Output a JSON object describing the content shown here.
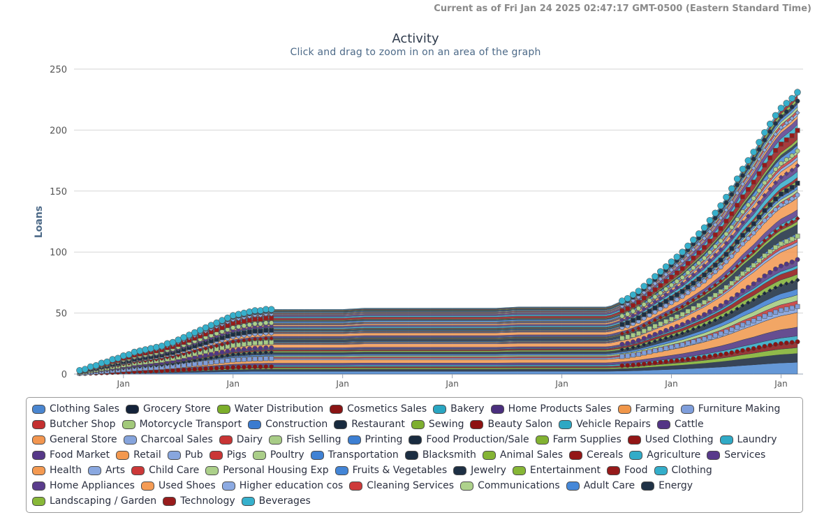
{
  "header": {
    "timestamp": "Current as of Fri Jan 24 2025 02:47:17 GMT-0500 (Eastern Standard Time)"
  },
  "chart_data": {
    "type": "area",
    "stacked": true,
    "title": "Activity",
    "subtitle": "Click and drag to zoom in on an area of the graph",
    "ylabel": "Loans",
    "xlabel": "",
    "ylim": [
      0,
      250
    ],
    "y_ticks": [
      0,
      50,
      100,
      150,
      200,
      250
    ],
    "x_tick_labels": [
      "Jan",
      "Jan",
      "Jan",
      "Jan",
      "Jan",
      "Jan",
      "Jan"
    ],
    "grid": true,
    "legend_position": "bottom",
    "x": [
      0,
      0.05,
      0.1,
      0.15,
      0.2,
      0.25,
      0.3,
      0.35,
      0.4,
      0.45,
      0.5,
      0.55,
      0.6,
      0.65,
      0.7,
      0.75,
      0.8,
      0.85,
      0.9,
      0.95,
      1.0,
      1.05,
      1.1,
      1.15,
      1.2,
      1.25,
      1.3,
      1.35,
      1.4,
      1.45,
      1.5,
      1.55,
      1.6,
      1.65,
      1.7,
      1.75,
      1.8,
      1.85,
      1.9,
      1.95,
      2.0,
      2.05,
      2.1,
      2.2,
      2.4,
      2.6,
      2.8,
      3.0,
      3.2,
      3.4,
      3.6,
      3.8,
      4.0,
      4.2,
      4.4,
      4.6,
      4.8,
      4.85,
      4.9,
      4.95,
      5.0,
      5.05,
      5.1,
      5.15,
      5.2,
      5.25,
      5.3,
      5.35,
      5.4,
      5.45,
      5.5,
      5.55,
      5.6,
      5.65,
      5.7,
      5.75,
      5.8,
      5.85,
      5.9,
      5.95,
      6.0,
      6.05,
      6.1,
      6.15,
      6.2,
      6.25,
      6.3,
      6.35,
      6.4,
      6.45,
      6.5,
      6.55
    ],
    "total": [
      3,
      4,
      6,
      7,
      9,
      10,
      12,
      13,
      15,
      16,
      18,
      19,
      20,
      21,
      22,
      23,
      25,
      26,
      28,
      30,
      32,
      34,
      36,
      38,
      40,
      42,
      44,
      46,
      48,
      49,
      50,
      51,
      52,
      52,
      53,
      53,
      53,
      53,
      53,
      53,
      53,
      53,
      53,
      53,
      53,
      54,
      54,
      54,
      54,
      54,
      54,
      54,
      55,
      55,
      55,
      55,
      55,
      56,
      58,
      60,
      62,
      65,
      68,
      72,
      76,
      80,
      84,
      88,
      92,
      96,
      100,
      105,
      110,
      115,
      120,
      126,
      132,
      138,
      145,
      152,
      160,
      168,
      175,
      182,
      190,
      198,
      205,
      212,
      218,
      222,
      226,
      231
    ],
    "series": [
      {
        "name": "Clothing Sales",
        "color": "#4a86d0",
        "weight": 4
      },
      {
        "name": "Grocery Store",
        "color": "#14233a",
        "weight": 3
      },
      {
        "name": "Water Distribution",
        "color": "#7cae2a",
        "weight": 2
      },
      {
        "name": "Cosmetics Sales",
        "color": "#8a1414",
        "weight": 2
      },
      {
        "name": "Bakery",
        "color": "#2aa6c2",
        "weight": 2
      },
      {
        "name": "Home Products Sales",
        "color": "#4b2f7e",
        "weight": 3
      },
      {
        "name": "Farming",
        "color": "#f0964a",
        "weight": 5
      },
      {
        "name": "Furniture Making",
        "color": "#7f9edb",
        "weight": 2
      },
      {
        "name": "Butcher Shop",
        "color": "#c43030",
        "weight": 2
      },
      {
        "name": "Motorcycle Transport",
        "color": "#a2c97a",
        "weight": 2
      },
      {
        "name": "Construction",
        "color": "#3a7bd0",
        "weight": 2
      },
      {
        "name": "Restaurant",
        "color": "#182a3e",
        "weight": 3
      },
      {
        "name": "Sewing",
        "color": "#7eaf30",
        "weight": 2
      },
      {
        "name": "Beauty Salon",
        "color": "#8e1212",
        "weight": 2
      },
      {
        "name": "Vehicle Repairs",
        "color": "#2ea8c4",
        "weight": 1
      },
      {
        "name": "Cattle",
        "color": "#533585",
        "weight": 2
      },
      {
        "name": "General Store",
        "color": "#f29650",
        "weight": 5
      },
      {
        "name": "Charcoal Sales",
        "color": "#86a4dc",
        "weight": 1
      },
      {
        "name": "Dairy",
        "color": "#c83434",
        "weight": 1
      },
      {
        "name": "Fish Selling",
        "color": "#a8cc86",
        "weight": 1
      },
      {
        "name": "Printing",
        "color": "#3d7fd2",
        "weight": 1
      },
      {
        "name": "Food Production/Sale",
        "color": "#1a2c40",
        "weight": 3
      },
      {
        "name": "Farm Supplies",
        "color": "#82b232",
        "weight": 1
      },
      {
        "name": "Used Clothing",
        "color": "#921616",
        "weight": 1
      },
      {
        "name": "Laundry",
        "color": "#30aac6",
        "weight": 1
      },
      {
        "name": "Food Market",
        "color": "#563888",
        "weight": 2
      },
      {
        "name": "Retail",
        "color": "#f3984f",
        "weight": 4
      },
      {
        "name": "Pub",
        "color": "#88a6de",
        "weight": 1
      },
      {
        "name": "Pigs",
        "color": "#ca3636",
        "weight": 1
      },
      {
        "name": "Poultry",
        "color": "#aace88",
        "weight": 1
      },
      {
        "name": "Transportation",
        "color": "#4082d4",
        "weight": 1
      },
      {
        "name": "Blacksmith",
        "color": "#1c2e42",
        "weight": 1
      },
      {
        "name": "Animal Sales",
        "color": "#84b434",
        "weight": 1
      },
      {
        "name": "Cereals",
        "color": "#941818",
        "weight": 1
      },
      {
        "name": "Agriculture",
        "color": "#32acc8",
        "weight": 2
      },
      {
        "name": "Services",
        "color": "#583a8a",
        "weight": 2
      },
      {
        "name": "Health",
        "color": "#f49a52",
        "weight": 2
      },
      {
        "name": "Arts",
        "color": "#8aa8e0",
        "weight": 1
      },
      {
        "name": "Child Care",
        "color": "#cc3838",
        "weight": 1
      },
      {
        "name": "Personal Housing Exp",
        "color": "#acd08a",
        "weight": 1
      },
      {
        "name": "Fruits & Vegetables",
        "color": "#4385d6",
        "weight": 2
      },
      {
        "name": "Jewelry",
        "color": "#1e3044",
        "weight": 1
      },
      {
        "name": "Entertainment",
        "color": "#86b636",
        "weight": 1
      },
      {
        "name": "Food",
        "color": "#961a1a",
        "weight": 3
      },
      {
        "name": "Clothing",
        "color": "#34aeca",
        "weight": 2
      },
      {
        "name": "Home Appliances",
        "color": "#5a3c8c",
        "weight": 2
      },
      {
        "name": "Used Shoes",
        "color": "#f59c55",
        "weight": 1
      },
      {
        "name": "Higher education cos",
        "color": "#8caae2",
        "weight": 1
      },
      {
        "name": "Cleaning Services",
        "color": "#ce3a3a",
        "weight": 1
      },
      {
        "name": "Communications",
        "color": "#aed28c",
        "weight": 1
      },
      {
        "name": "Adult Care",
        "color": "#4688d8",
        "weight": 1
      },
      {
        "name": "Energy",
        "color": "#203246",
        "weight": 1
      },
      {
        "name": "Landscaping / Garden",
        "color": "#88b838",
        "weight": 1
      },
      {
        "name": "Technology",
        "color": "#981c1c",
        "weight": 1
      },
      {
        "name": "Beverages",
        "color": "#36b0cc",
        "weight": 1
      }
    ]
  }
}
